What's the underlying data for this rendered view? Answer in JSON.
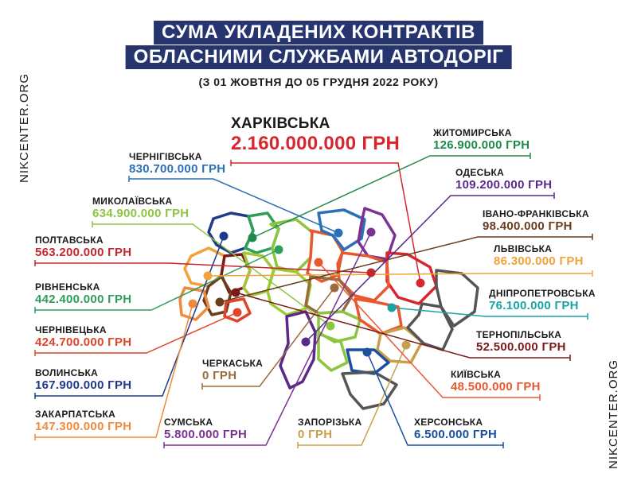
{
  "header": {
    "title_line1": "СУМА УКЛАДЕНИХ КОНТРАКТІВ",
    "title_line2": "ОБЛАСНИМИ СЛУЖБАМИ АВТОДОРІГ",
    "subtitle": "(З 01 ЖОВТНЯ ДО 05 ГРУДНЯ 2022 РОКУ)"
  },
  "watermark": {
    "left": "NIKCENTER.ORG",
    "right": "NIKCENTER.ORG"
  },
  "regions": [
    {
      "id": "kharkivska",
      "name": "ХАРКІВСЬКА",
      "value": "2.160.000.000 ГРН",
      "color": "#d7262e"
    },
    {
      "id": "chernihivska",
      "name": "ЧЕРНІГІВСЬКА",
      "value": "830.700.000 ГРН",
      "color": "#2a6fb8"
    },
    {
      "id": "mykolaivska",
      "name": "МИКОЛАЇВСЬКА",
      "value": "634.900.000 ГРН",
      "color": "#8cc63f"
    },
    {
      "id": "poltavska",
      "name": "ПОЛТАВСЬКА",
      "value": "563.200.000 ГРН",
      "color": "#c1272d"
    },
    {
      "id": "rivnenska",
      "name": "РІВНЕНСЬКА",
      "value": "442.400.000 ГРН",
      "color": "#2e9e5b"
    },
    {
      "id": "chernivetska",
      "name": "ЧЕРНІВЕЦЬКА",
      "value": "424.700.000 ГРН",
      "color": "#e0452a"
    },
    {
      "id": "volynska",
      "name": "ВОЛИНСЬКА",
      "value": "167.900.000 ГРН",
      "color": "#1f3a8a"
    },
    {
      "id": "zakarpatska",
      "name": "ЗАКАРПАТСЬКА",
      "value": "147.300.000 ГРН",
      "color": "#f08a3c"
    },
    {
      "id": "sumska",
      "name": "СУМСЬКА",
      "value": "5.800.000 ГРН",
      "color": "#7b3294"
    },
    {
      "id": "cherkaska",
      "name": "ЧЕРКАСЬКА",
      "value": "0 ГРН",
      "color": "#9a6a3a"
    },
    {
      "id": "zaporizka",
      "name": "ЗАПОРІЗЬКА",
      "value": "0 ГРН",
      "color": "#c8a04a"
    },
    {
      "id": "khersonska",
      "name": "ХЕРСОНСЬКА",
      "value": "6.500.000 ГРН",
      "color": "#1b4fa0"
    },
    {
      "id": "kyivska",
      "name": "КИЇВСЬКА",
      "value": "48.500.000 ГРН",
      "color": "#e8582e"
    },
    {
      "id": "ternopilska",
      "name": "ТЕРНОПІЛЬСЬКА",
      "value": "52.500.000 ГРН",
      "color": "#7a1a1a"
    },
    {
      "id": "dnipropetrovska",
      "name": "ДНІПРОПЕТРОВСЬКА",
      "value": "76.100.000 ГРН",
      "color": "#1aa3a3"
    },
    {
      "id": "lvivska",
      "name": "ЛЬВІВСЬКА",
      "value": "86.300.000 ГРН",
      "color": "#f2a23a"
    },
    {
      "id": "ivano_frankivska",
      "name": "ІВАНО-ФРАНКІВСЬКА",
      "value": "98.400.000 ГРН",
      "color": "#6b3d1e"
    },
    {
      "id": "odeska",
      "name": "ОДЕСЬКА",
      "value": "109.200.000 ГРН",
      "color": "#5a2a8a"
    },
    {
      "id": "zhytomyrska",
      "name": "ЖИТОМИРСЬКА",
      "value": "126.900.000 ГРН",
      "color": "#1e8a4a"
    }
  ]
}
